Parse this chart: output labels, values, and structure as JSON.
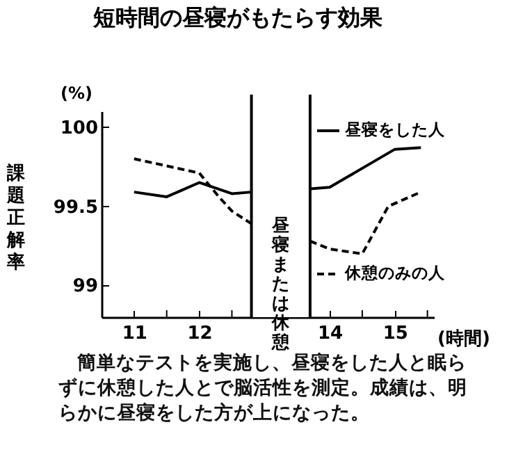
{
  "chart_data": {
    "type": "line",
    "title": "短時間の昼寝がもたらす効果",
    "xlabel": "(時間)",
    "ylabel": "課題正解率",
    "annotations": [
      "(%)",
      "簡単なテストを実施し、昼寝をした人と眠らずに休憩した人とで脳活性を測定。成績は、明らかに昼寝をした方が上になった。"
    ],
    "xlim": [
      10.5,
      15.6
    ],
    "ylim": [
      98.8,
      100.1
    ],
    "xticks": [
      11,
      {
        "value": 11.5,
        "label": null
      },
      12,
      {
        "value": 12.5,
        "label": null
      },
      14,
      {
        "value": 14.5,
        "label": null
      },
      15,
      {
        "value": 15.5,
        "label": null
      }
    ],
    "yticks": [
      99,
      99.5,
      100
    ],
    "grid": false,
    "marker": "none",
    "legend": "top right",
    "ref_lines": [
      {
        "axis": "x",
        "value": 12.8
      },
      {
        "axis": "x",
        "value": 13.7
      }
    ],
    "bands": [
      {
        "axis": "x",
        "from": 12.8,
        "to": 13.7,
        "label": "昼寝または休憩",
        "color": "#ffffff"
      }
    ],
    "series": [
      {
        "name": "昼寝をした人",
        "color": "#000000",
        "line_style": "solid",
        "x": [
          11,
          11.5,
          12,
          12.5,
          12.8,
          13.2,
          13.7,
          14,
          15,
          15.4
        ],
        "values": [
          99.59,
          99.56,
          99.65,
          99.58,
          99.59,
          null,
          99.61,
          99.62,
          99.86,
          99.87
        ]
      },
      {
        "name": "休憩のみの人",
        "color": "#000000",
        "line_style": "dashed",
        "x": [
          11,
          12,
          12.3,
          12.5,
          12.8,
          13.2,
          13.7,
          14,
          14.5,
          14.9,
          15.4
        ],
        "values": [
          99.8,
          99.71,
          99.56,
          99.47,
          99.39,
          null,
          99.28,
          99.23,
          99.2,
          99.5,
          99.59
        ]
      }
    ]
  }
}
